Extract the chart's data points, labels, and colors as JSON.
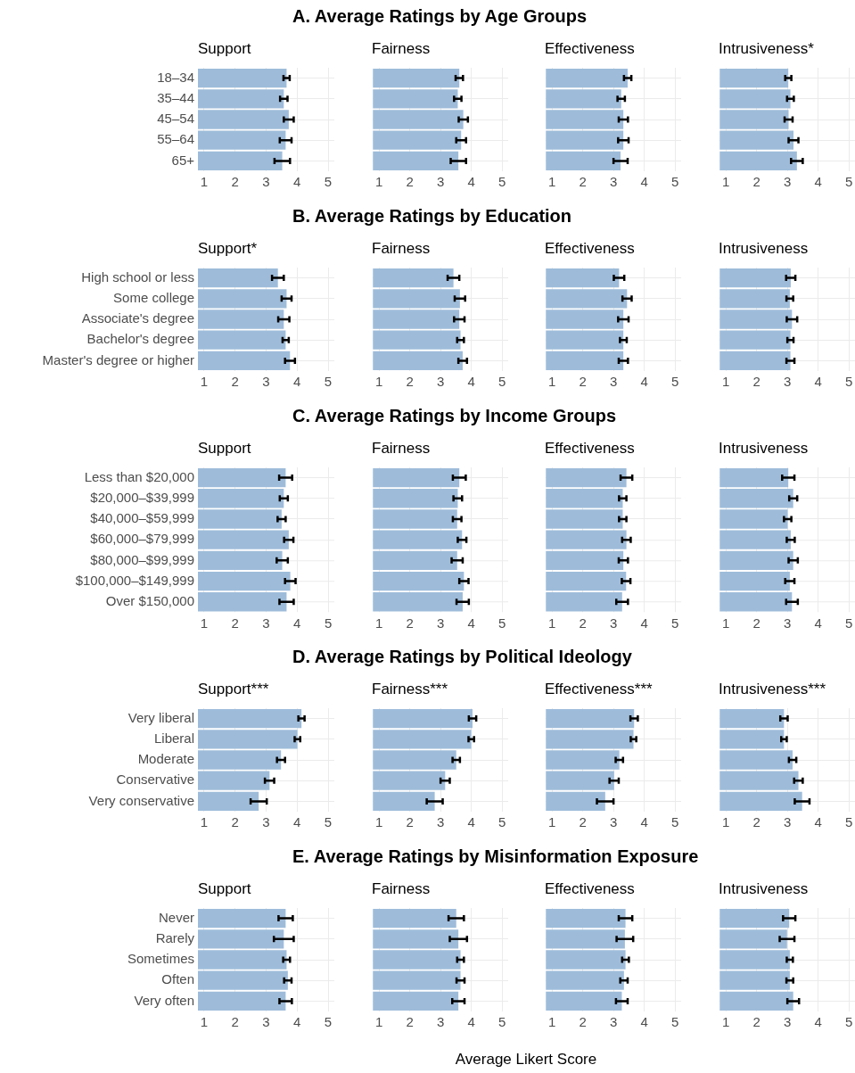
{
  "chart_data": [
    {
      "type": "bar",
      "orientation": "horizontal",
      "title": "A. Average Ratings by Age Groups",
      "subtitle": "Support",
      "categories": [
        "18–34",
        "35–44",
        "45–54",
        "55–64",
        "65+"
      ],
      "values": [
        3.66,
        3.57,
        3.73,
        3.63,
        3.52
      ],
      "errors": [
        0.1,
        0.12,
        0.16,
        0.19,
        0.25
      ],
      "color": "#9ebcda",
      "xlim": [
        0.8,
        5.2
      ],
      "xticks": [
        1,
        2,
        3,
        4,
        5
      ],
      "grid": true
    },
    {
      "type": "bar",
      "orientation": "horizontal",
      "subtitle": "Fairness",
      "categories": [
        null,
        null,
        null,
        null,
        null
      ],
      "values": [
        3.61,
        3.56,
        3.74,
        3.67,
        3.58
      ],
      "errors": [
        0.12,
        0.12,
        0.15,
        0.16,
        0.25
      ],
      "color": "#9ebcda",
      "xlim": [
        0.8,
        5.2
      ],
      "xticks": [
        1,
        2,
        3,
        4,
        5
      ],
      "grid": true,
      "tick_labels": "x"
    },
    {
      "type": "bar",
      "orientation": "horizontal",
      "subtitle": "Effectiveness",
      "categories": [
        null,
        null,
        null,
        null,
        null
      ],
      "values": [
        3.46,
        3.25,
        3.32,
        3.32,
        3.23
      ],
      "errors": [
        0.12,
        0.12,
        0.15,
        0.17,
        0.23
      ],
      "color": "#9ebcda",
      "xlim": [
        0.8,
        5.2
      ],
      "xticks": [
        1,
        2,
        3,
        4,
        5
      ],
      "grid": true,
      "tick_labels": "x"
    },
    {
      "type": "bar",
      "orientation": "horizontal",
      "subtitle": "Intrusiveness*",
      "categories": [
        null,
        null,
        null,
        null,
        null
      ],
      "values": [
        3.03,
        3.1,
        3.04,
        3.2,
        3.31
      ],
      "errors": [
        0.1,
        0.11,
        0.13,
        0.16,
        0.19
      ],
      "color": "#9ebcda",
      "xlim": [
        0.8,
        5.2
      ],
      "xticks": [
        1,
        2,
        3,
        4,
        5
      ],
      "grid": true,
      "tick_labels": "x"
    },
    {
      "type": "bar",
      "orientation": "horizontal",
      "title": "B. Average Ratings by Education",
      "subtitle": "Support*",
      "categories": [
        "High school or less",
        "Some college",
        "Associate's degree",
        "Bachelor's degree",
        "Master's degree or higher"
      ],
      "values": [
        3.38,
        3.66,
        3.57,
        3.63,
        3.77
      ],
      "errors": [
        0.19,
        0.16,
        0.18,
        0.1,
        0.16
      ],
      "color": "#9ebcda",
      "xlim": [
        0.8,
        5.2
      ],
      "xticks": [
        1,
        2,
        3,
        4,
        5
      ],
      "grid": true
    },
    {
      "type": "bar",
      "orientation": "horizontal",
      "subtitle": "Fairness",
      "categories": [
        null,
        null,
        null,
        null,
        null
      ],
      "values": [
        3.42,
        3.63,
        3.61,
        3.65,
        3.72
      ],
      "errors": [
        0.19,
        0.17,
        0.17,
        0.11,
        0.14
      ],
      "color": "#9ebcda",
      "xlim": [
        0.8,
        5.2
      ],
      "xticks": [
        1,
        2,
        3,
        4,
        5
      ],
      "grid": true,
      "tick_labels": "x"
    },
    {
      "type": "bar",
      "orientation": "horizontal",
      "subtitle": "Effectiveness",
      "categories": [
        null,
        null,
        null,
        null,
        null
      ],
      "values": [
        3.18,
        3.44,
        3.32,
        3.32,
        3.32
      ],
      "errors": [
        0.17,
        0.15,
        0.17,
        0.11,
        0.15
      ],
      "color": "#9ebcda",
      "xlim": [
        0.8,
        5.2
      ],
      "xticks": [
        1,
        2,
        3,
        4,
        5
      ],
      "grid": true,
      "tick_labels": "x"
    },
    {
      "type": "bar",
      "orientation": "horizontal",
      "subtitle": "Intrusiveness",
      "categories": [
        null,
        null,
        null,
        null,
        null
      ],
      "values": [
        3.11,
        3.08,
        3.15,
        3.1,
        3.1
      ],
      "errors": [
        0.15,
        0.11,
        0.17,
        0.1,
        0.13
      ],
      "color": "#9ebcda",
      "xlim": [
        0.8,
        5.2
      ],
      "xticks": [
        1,
        2,
        3,
        4,
        5
      ],
      "grid": true,
      "tick_labels": "x"
    },
    {
      "type": "bar",
      "orientation": "horizontal",
      "title": "C. Average Ratings by Income Groups",
      "subtitle": "Support",
      "categories": [
        "Less than $20,000",
        "$20,000–$39,999",
        "$40,000–$59,999",
        "$60,000–$79,999",
        "$80,000–$99,999",
        "$100,000–$149,999",
        "Over $150,000"
      ],
      "values": [
        3.63,
        3.57,
        3.5,
        3.73,
        3.52,
        3.78,
        3.66
      ],
      "errors": [
        0.21,
        0.13,
        0.13,
        0.15,
        0.18,
        0.17,
        0.23
      ],
      "color": "#9ebcda",
      "xlim": [
        0.8,
        5.2
      ],
      "xticks": [
        1,
        2,
        3,
        4,
        5
      ],
      "grid": true
    },
    {
      "type": "bar",
      "orientation": "horizontal",
      "subtitle": "Fairness",
      "categories": [
        null,
        null,
        null,
        null,
        null,
        null,
        null
      ],
      "values": [
        3.61,
        3.56,
        3.54,
        3.7,
        3.54,
        3.76,
        3.72
      ],
      "errors": [
        0.21,
        0.14,
        0.14,
        0.14,
        0.18,
        0.15,
        0.2
      ],
      "color": "#9ebcda",
      "xlim": [
        0.8,
        5.2
      ],
      "xticks": [
        1,
        2,
        3,
        4,
        5
      ],
      "grid": true,
      "tick_labels": "x"
    },
    {
      "type": "bar",
      "orientation": "horizontal",
      "subtitle": "Effectiveness",
      "categories": [
        null,
        null,
        null,
        null,
        null,
        null,
        null
      ],
      "values": [
        3.42,
        3.3,
        3.3,
        3.42,
        3.32,
        3.41,
        3.28
      ],
      "errors": [
        0.19,
        0.12,
        0.12,
        0.14,
        0.15,
        0.14,
        0.19
      ],
      "color": "#9ebcda",
      "xlim": [
        0.8,
        5.2
      ],
      "xticks": [
        1,
        2,
        3,
        4,
        5
      ],
      "grid": true,
      "tick_labels": "x"
    },
    {
      "type": "bar",
      "orientation": "horizontal",
      "subtitle": "Intrusiveness",
      "categories": [
        null,
        null,
        null,
        null,
        null,
        null,
        null
      ],
      "values": [
        3.03,
        3.19,
        3.01,
        3.11,
        3.19,
        3.08,
        3.15
      ],
      "errors": [
        0.2,
        0.13,
        0.12,
        0.13,
        0.15,
        0.15,
        0.19
      ],
      "color": "#9ebcda",
      "xlim": [
        0.8,
        5.2
      ],
      "xticks": [
        1,
        2,
        3,
        4,
        5
      ],
      "grid": true,
      "tick_labels": "x"
    },
    {
      "type": "bar",
      "orientation": "horizontal",
      "title": "D. Average Ratings by Political Ideology",
      "subtitle": "Support***",
      "categories": [
        "Very liberal",
        "Liberal",
        "Moderate",
        "Conservative",
        "Very conservative"
      ],
      "values": [
        4.14,
        4.01,
        3.48,
        3.11,
        2.76
      ],
      "errors": [
        0.1,
        0.09,
        0.13,
        0.15,
        0.26
      ],
      "color": "#9ebcda",
      "xlim": [
        0.8,
        5.2
      ],
      "xticks": [
        1,
        2,
        3,
        4,
        5
      ],
      "grid": true
    },
    {
      "type": "bar",
      "orientation": "horizontal",
      "subtitle": "Fairness***",
      "categories": [
        null,
        null,
        null,
        null,
        null
      ],
      "values": [
        4.04,
        4.0,
        3.51,
        3.15,
        2.81
      ],
      "errors": [
        0.12,
        0.09,
        0.12,
        0.15,
        0.26
      ],
      "color": "#9ebcda",
      "xlim": [
        0.8,
        5.2
      ],
      "xticks": [
        1,
        2,
        3,
        4,
        5
      ],
      "grid": true,
      "tick_labels": "x"
    },
    {
      "type": "bar",
      "orientation": "horizontal",
      "subtitle": "Effectiveness***",
      "categories": [
        null,
        null,
        null,
        null,
        null
      ],
      "values": [
        3.67,
        3.65,
        3.19,
        3.02,
        2.73
      ],
      "errors": [
        0.12,
        0.09,
        0.12,
        0.15,
        0.27
      ],
      "color": "#9ebcda",
      "xlim": [
        0.8,
        5.2
      ],
      "xticks": [
        1,
        2,
        3,
        4,
        5
      ],
      "grid": true,
      "tick_labels": "x"
    },
    {
      "type": "bar",
      "orientation": "horizontal",
      "subtitle": "Intrusiveness***",
      "categories": [
        null,
        null,
        null,
        null,
        null
      ],
      "values": [
        2.89,
        2.89,
        3.17,
        3.36,
        3.48
      ],
      "errors": [
        0.12,
        0.09,
        0.12,
        0.14,
        0.24
      ],
      "color": "#9ebcda",
      "xlim": [
        0.8,
        5.2
      ],
      "xticks": [
        1,
        2,
        3,
        4,
        5
      ],
      "grid": true,
      "tick_labels": "x"
    },
    {
      "type": "bar",
      "orientation": "horizontal",
      "title": "E. Average Ratings by Misinformation Exposure",
      "subtitle": "Support",
      "categories": [
        "Never",
        "Rarely",
        "Sometimes",
        "Often",
        "Very often"
      ],
      "values": [
        3.63,
        3.57,
        3.66,
        3.7,
        3.63
      ],
      "errors": [
        0.23,
        0.32,
        0.11,
        0.12,
        0.2
      ],
      "color": "#9ebcda",
      "xlim": [
        0.8,
        5.2
      ],
      "xticks": [
        1,
        2,
        3,
        4,
        5
      ],
      "grid": true
    },
    {
      "type": "bar",
      "orientation": "horizontal",
      "subtitle": "Fairness",
      "xlabel": "Average Likert Score",
      "categories": [
        null,
        null,
        null,
        null,
        null
      ],
      "values": [
        3.51,
        3.58,
        3.65,
        3.65,
        3.58
      ],
      "errors": [
        0.25,
        0.28,
        0.11,
        0.13,
        0.2
      ],
      "color": "#9ebcda",
      "xlim": [
        0.8,
        5.2
      ],
      "xticks": [
        1,
        2,
        3,
        4,
        5
      ],
      "grid": true,
      "tick_labels": "x"
    },
    {
      "type": "bar",
      "orientation": "horizontal",
      "subtitle": "Effectiveness",
      "categories": [
        null,
        null,
        null,
        null,
        null
      ],
      "values": [
        3.39,
        3.37,
        3.39,
        3.34,
        3.27
      ],
      "errors": [
        0.22,
        0.27,
        0.11,
        0.12,
        0.19
      ],
      "color": "#9ebcda",
      "xlim": [
        0.8,
        5.2
      ],
      "xticks": [
        1,
        2,
        3,
        4,
        5
      ],
      "grid": true,
      "tick_labels": "x"
    },
    {
      "type": "bar",
      "orientation": "horizontal",
      "subtitle": "Intrusiveness",
      "categories": [
        null,
        null,
        null,
        null,
        null
      ],
      "values": [
        3.06,
        2.99,
        3.08,
        3.08,
        3.19
      ],
      "errors": [
        0.2,
        0.24,
        0.1,
        0.11,
        0.19
      ],
      "color": "#9ebcda",
      "xlim": [
        0.8,
        5.2
      ],
      "xticks": [
        1,
        2,
        3,
        4,
        5
      ],
      "grid": true,
      "tick_labels": "x"
    }
  ]
}
